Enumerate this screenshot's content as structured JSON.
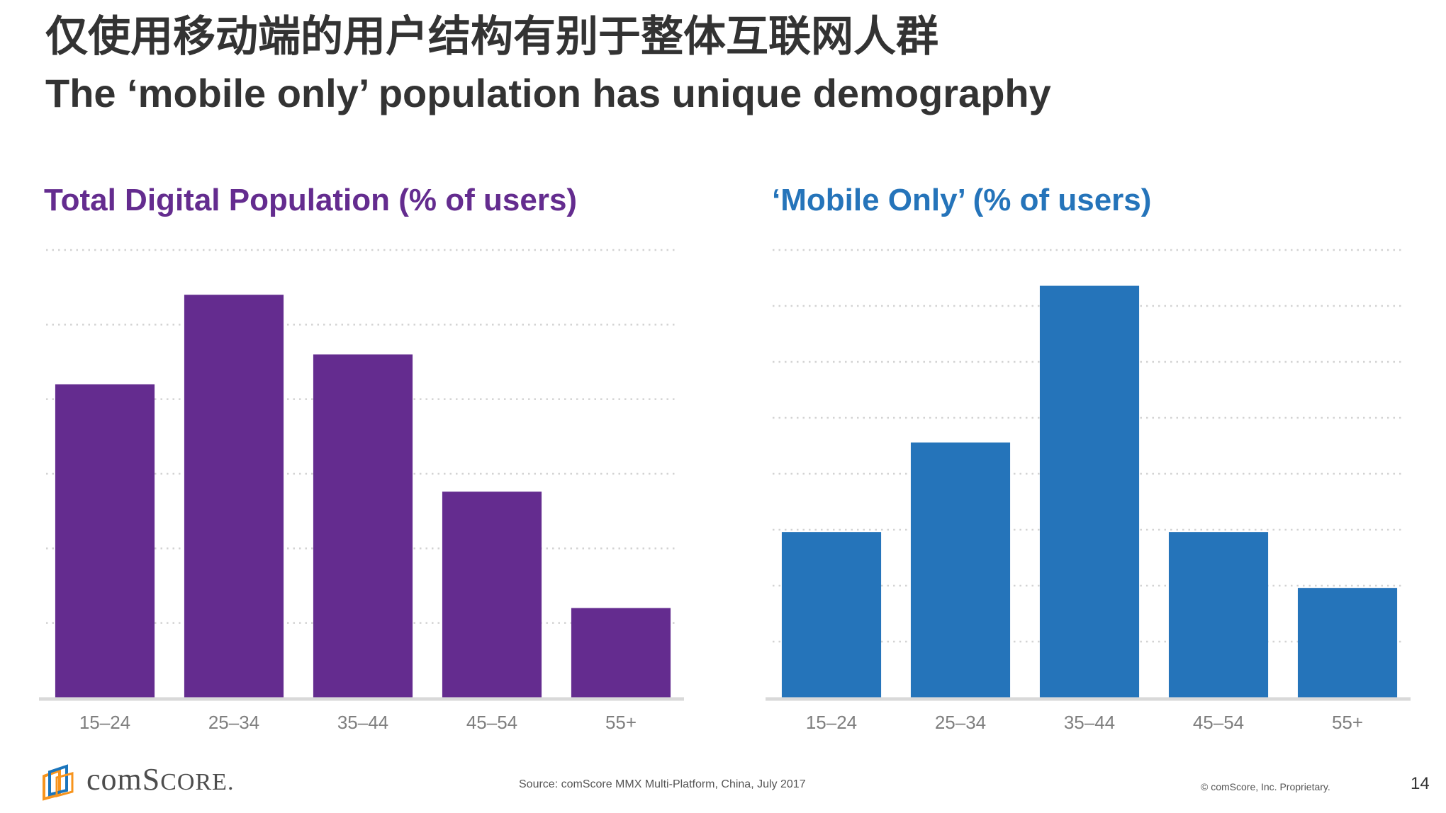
{
  "title_zh": "仅使用移动端的用户结构有别于整体互联网人群",
  "title_en": "The ‘mobile only’ population has unique demography",
  "colors": {
    "purple": "#642C8F",
    "blue": "#2574BA",
    "grid": "#d3d3d3",
    "baseline": "#d9d9d9",
    "tick": "#7f7f7f"
  },
  "chart_data": [
    {
      "type": "bar",
      "title": "Total Digital Population (% of users)",
      "categories": [
        "15–24",
        "25–34",
        "35–44",
        "45–54",
        "55+"
      ],
      "values": [
        21,
        27,
        23,
        13.8,
        6
      ],
      "ylim": [
        0,
        30
      ],
      "grid": true,
      "gridlines": 6,
      "color": "#642C8F"
    },
    {
      "type": "bar",
      "title": "‘Mobile Only’ (% of users)",
      "categories": [
        "15–24",
        "25–34",
        "35–44",
        "45–54",
        "55+"
      ],
      "values": [
        14.8,
        22.8,
        36.8,
        14.8,
        9.8
      ],
      "ylim": [
        0,
        40
      ],
      "grid": true,
      "gridlines": 8,
      "color": "#2574BA"
    }
  ],
  "footer": {
    "brand_prefix": "com",
    "brand_s": "S",
    "brand_rest": "CORE",
    "brand_dot": ".",
    "source": "Source: comScore MMX Multi-Platform, China, July 2017",
    "copyright": "© comScore, Inc. Proprietary.",
    "page_number": "14"
  }
}
